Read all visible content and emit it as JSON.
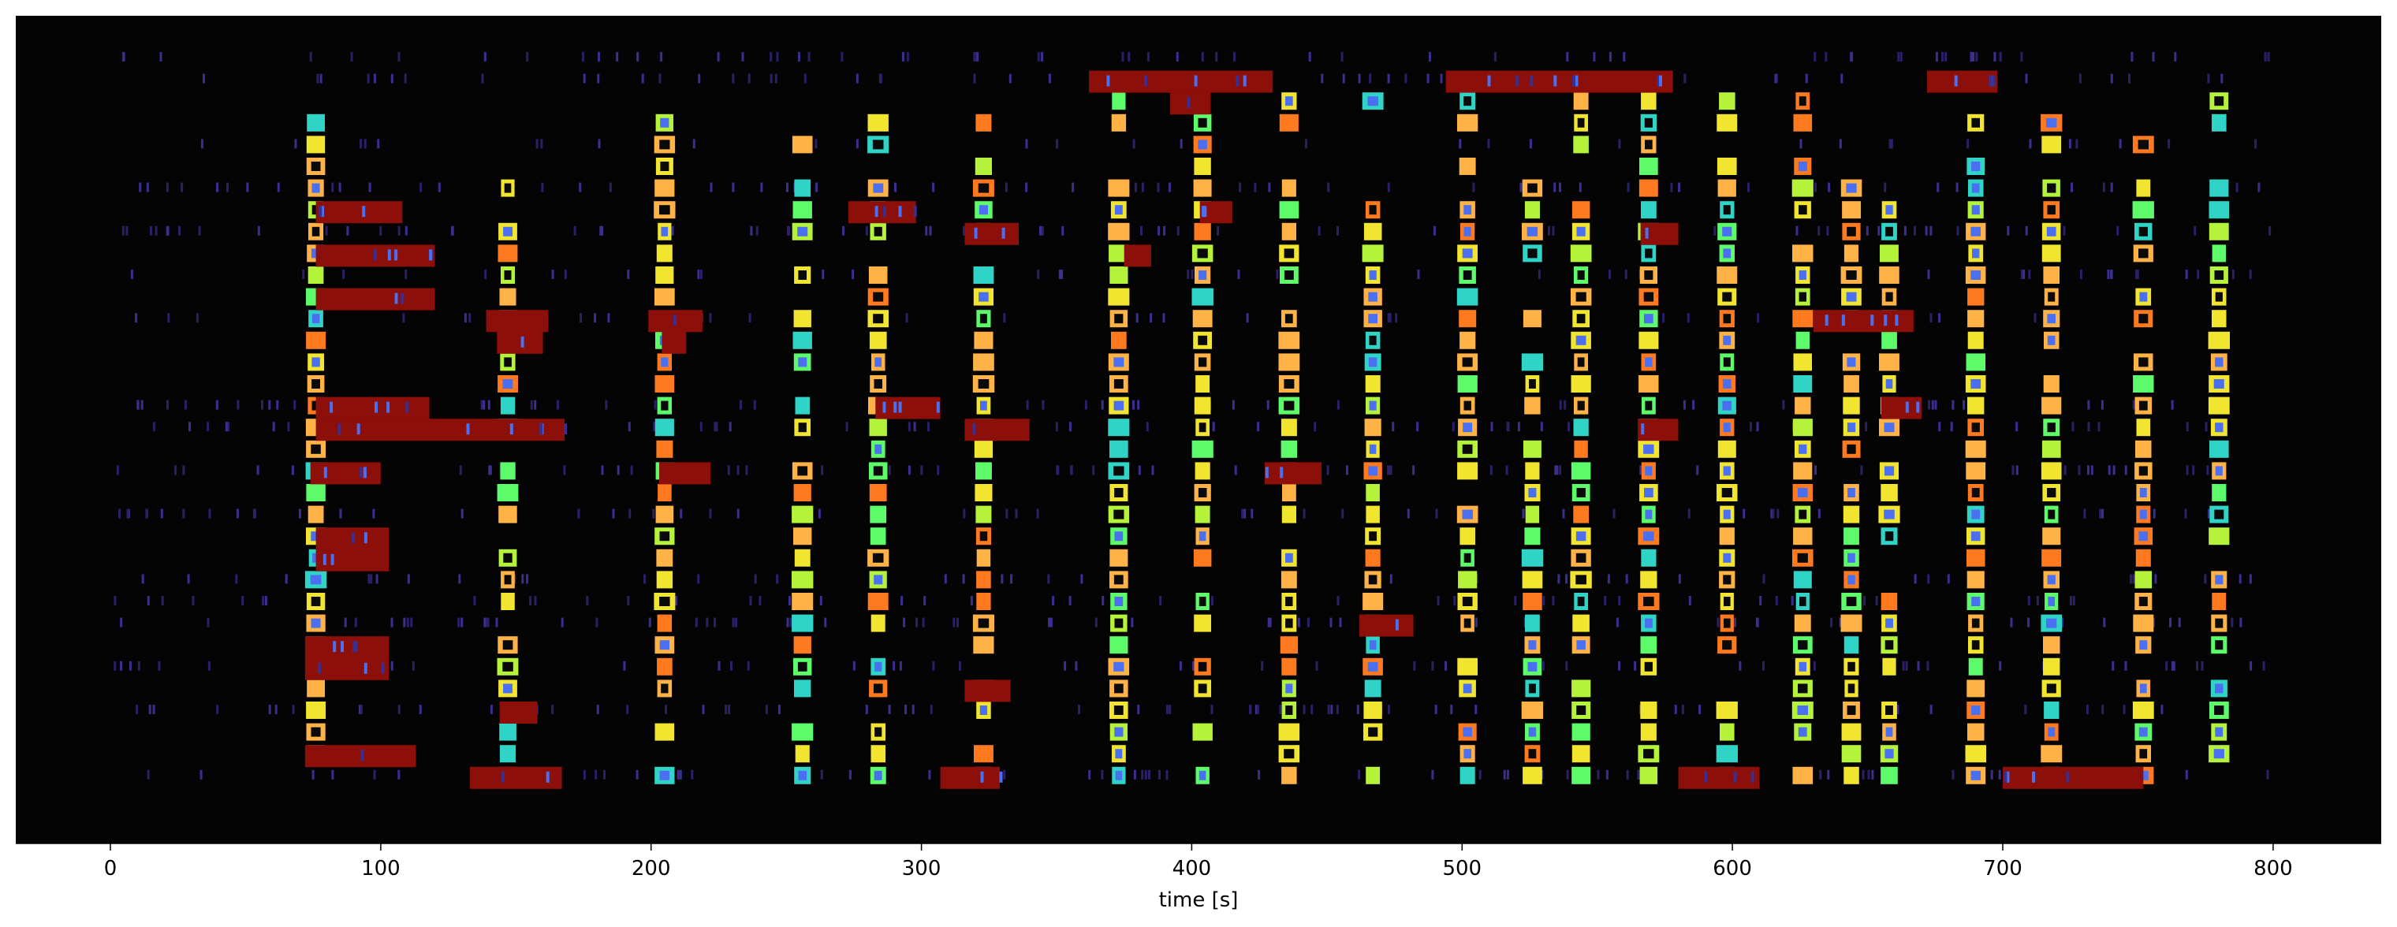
{
  "chart_data": {
    "type": "heatmap",
    "title": "",
    "xlabel": "time [s]",
    "ylabel": "",
    "xlim": [
      -35,
      840
    ],
    "ylim": [
      0,
      35
    ],
    "x_ticks": [
      0,
      100,
      200,
      300,
      400,
      500,
      600,
      700,
      800
    ],
    "x_tick_labels": [
      "0",
      "100",
      "200",
      "300",
      "400",
      "500",
      "600",
      "700",
      "800"
    ],
    "rows": 34,
    "background": "#040404",
    "colormap": "turbo",
    "colors": {
      "long_event": "#8c0f0a",
      "orange": "#ff7a1f",
      "red_orange": "#e64a12",
      "amber": "#ffb347",
      "yellow": "#f2e52f",
      "lime": "#b5f23a",
      "green": "#5dfa6a",
      "cyan": "#2fd4c7",
      "blue": "#4a6ff0",
      "indigo": "#3a2f8f"
    },
    "stimulus_times": [
      76,
      147,
      205,
      256,
      284,
      323,
      373,
      404,
      436,
      467,
      502,
      526,
      544,
      569,
      598,
      626,
      644,
      658,
      690,
      718,
      752,
      780
    ],
    "long_events": [
      {
        "row": 1,
        "start": 362,
        "end": 430
      },
      {
        "row": 1,
        "start": 494,
        "end": 578
      },
      {
        "row": 1,
        "start": 672,
        "end": 698
      },
      {
        "row": 2,
        "start": 392,
        "end": 407
      },
      {
        "row": 7,
        "start": 76,
        "end": 108
      },
      {
        "row": 7,
        "start": 273,
        "end": 298
      },
      {
        "row": 7,
        "start": 403,
        "end": 415
      },
      {
        "row": 8,
        "start": 316,
        "end": 336
      },
      {
        "row": 8,
        "start": 566,
        "end": 580
      },
      {
        "row": 9,
        "start": 76,
        "end": 120
      },
      {
        "row": 9,
        "start": 375,
        "end": 385
      },
      {
        "row": 11,
        "start": 76,
        "end": 120
      },
      {
        "row": 12,
        "start": 139,
        "end": 162
      },
      {
        "row": 12,
        "start": 199,
        "end": 219
      },
      {
        "row": 12,
        "start": 630,
        "end": 667
      },
      {
        "row": 13,
        "start": 143,
        "end": 160
      },
      {
        "row": 13,
        "start": 204,
        "end": 213
      },
      {
        "row": 16,
        "start": 76,
        "end": 118
      },
      {
        "row": 16,
        "start": 283,
        "end": 307
      },
      {
        "row": 16,
        "start": 655,
        "end": 670
      },
      {
        "row": 17,
        "start": 76,
        "end": 168
      },
      {
        "row": 17,
        "start": 316,
        "end": 340
      },
      {
        "row": 17,
        "start": 565,
        "end": 580
      },
      {
        "row": 19,
        "start": 74,
        "end": 100
      },
      {
        "row": 19,
        "start": 203,
        "end": 222
      },
      {
        "row": 19,
        "start": 427,
        "end": 448
      },
      {
        "row": 22,
        "start": 76,
        "end": 103
      },
      {
        "row": 23,
        "start": 76,
        "end": 103
      },
      {
        "row": 26,
        "start": 462,
        "end": 482
      },
      {
        "row": 27,
        "start": 72,
        "end": 103
      },
      {
        "row": 28,
        "start": 72,
        "end": 103
      },
      {
        "row": 29,
        "start": 316,
        "end": 333
      },
      {
        "row": 30,
        "start": 144,
        "end": 158
      },
      {
        "row": 32,
        "start": 72,
        "end": 113
      },
      {
        "row": 33,
        "start": 133,
        "end": 167
      },
      {
        "row": 33,
        "start": 307,
        "end": 329
      },
      {
        "row": 33,
        "start": 580,
        "end": 610
      },
      {
        "row": 33,
        "start": 700,
        "end": 752
      }
    ]
  }
}
